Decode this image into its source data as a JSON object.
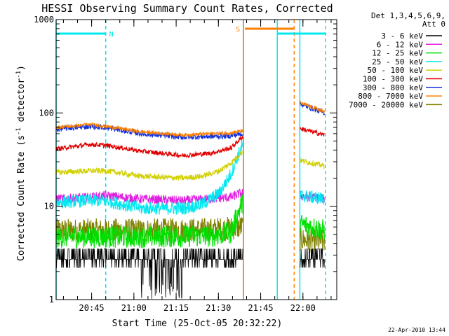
{
  "chart_data": {
    "type": "line",
    "title": "HESSI Observing Summary Count Rates, Corrected",
    "xlabel": "Start Time (25-Oct-05 20:32:22)",
    "ylabel_main": "Corrected Count Rate (s",
    "ylabel_sup1": "-1",
    "ylabel_mid": " detector",
    "ylabel_sup2": "-1",
    "ylabel_end": ")",
    "yscale": "log",
    "ylim": [
      1,
      1000
    ],
    "xlim_minutes": [
      0,
      99.6
    ],
    "y_ticks": [
      {
        "value": 1,
        "label": "1"
      },
      {
        "value": 10,
        "label": "10"
      },
      {
        "value": 100,
        "label": "100"
      },
      {
        "value": 1000,
        "label": "1000"
      }
    ],
    "x_ticks": [
      {
        "minute": 12.6,
        "label": "20:45"
      },
      {
        "minute": 27.6,
        "label": "21:00"
      },
      {
        "minute": 42.6,
        "label": "21:15"
      },
      {
        "minute": 57.6,
        "label": "21:30"
      },
      {
        "minute": 72.6,
        "label": "21:45"
      },
      {
        "minute": 87.6,
        "label": "22:00"
      }
    ],
    "legend_header": [
      "Det 1,3,4,5,6,9,",
      "Att 0"
    ],
    "legend_placement": "right",
    "series": [
      {
        "name": "3 - 6 keV",
        "color": "#000000"
      },
      {
        "name": "6 - 12 keV",
        "color": "#e020e0"
      },
      {
        "name": "12 - 25 keV",
        "color": "#00e000"
      },
      {
        "name": "25 - 50 keV",
        "color": "#00e8f0"
      },
      {
        "name": "50 - 100 keV",
        "color": "#d0d000"
      },
      {
        "name": "100 - 300 keV",
        "color": "#e00000"
      },
      {
        "name": "300 - 800 keV",
        "color": "#1030e0"
      },
      {
        "name": "800 - 7000 keV",
        "color": "#ff7f00"
      },
      {
        "name": "7000 - 20000 keV",
        "color": "#808000"
      }
    ],
    "flag_bars": [
      {
        "label": "N",
        "start": 0,
        "end": 17.6,
        "color": "#00e8f0"
      },
      {
        "label": "S",
        "start": 67,
        "end": 84.5,
        "color": "#ff7f00"
      },
      {
        "label": "",
        "start": 78.5,
        "end": 95.6,
        "color": "#00e8f0"
      }
    ],
    "markers": [
      {
        "minute": 0,
        "color": "#00e8f0",
        "style": "solid"
      },
      {
        "minute": 17.6,
        "color": "#00e8f0",
        "style": "dashed"
      },
      {
        "minute": 66.5,
        "color": "#c08020",
        "style": "solid"
      },
      {
        "minute": 78.5,
        "color": "#00e8f0",
        "style": "solid"
      },
      {
        "minute": 84.5,
        "color": "#ff7f00",
        "style": "dashed"
      },
      {
        "minute": 86.5,
        "color": "#00e8f0",
        "style": "solid"
      },
      {
        "minute": 95.6,
        "color": "#00e8f0",
        "style": "dashed"
      }
    ],
    "data_segments": [
      {
        "start": 0,
        "end": 66.3
      },
      {
        "start": 86.6,
        "end": 95.3
      }
    ],
    "series_profiles": [
      {
        "name": "3 - 6 keV",
        "x": [
          0,
          95.3
        ],
        "y": [
          2.7,
          2.7
        ]
      },
      {
        "name": "6 - 12 keV",
        "x": [
          0,
          12,
          17.6,
          30,
          45,
          55,
          62,
          66,
          86.6,
          95.3
        ],
        "y": [
          12,
          12.5,
          13,
          12,
          11.5,
          12,
          12.5,
          14,
          13,
          12
        ]
      },
      {
        "name": "12 - 25 keV",
        "x": [
          0,
          30,
          55,
          62,
          66,
          86.6,
          95.3
        ],
        "y": [
          4.7,
          4.7,
          4.8,
          5.2,
          11,
          6.5,
          5.5
        ]
      },
      {
        "name": "25 - 50 keV",
        "x": [
          0,
          12,
          17.6,
          30,
          45,
          52,
          58,
          62,
          66,
          86.6,
          95.3
        ],
        "y": [
          11,
          11.5,
          11.5,
          9.5,
          9.5,
          10.5,
          14,
          22,
          45,
          13,
          12
        ]
      },
      {
        "name": "50 - 100 keV",
        "x": [
          0,
          12,
          17.6,
          30,
          45,
          52,
          58,
          62,
          66,
          86.6,
          95.3
        ],
        "y": [
          23,
          24,
          24,
          21,
          20,
          21,
          24,
          29,
          38,
          31,
          27
        ]
      },
      {
        "name": "100 - 300 keV",
        "x": [
          0,
          12,
          17.6,
          30,
          45,
          55,
          62,
          66,
          86.6,
          95.3
        ],
        "y": [
          41,
          46,
          45,
          39,
          35,
          37,
          42,
          55,
          68,
          58
        ]
      },
      {
        "name": "300 - 800 keV",
        "x": [
          0,
          12,
          17.6,
          30,
          45,
          55,
          62,
          66,
          86.6,
          95.3
        ],
        "y": [
          67,
          72,
          70,
          60,
          55,
          56,
          57,
          60,
          125,
          100
        ]
      },
      {
        "name": "800 - 7000 keV",
        "x": [
          0,
          12,
          17.6,
          30,
          45,
          55,
          62,
          66,
          86.6,
          95.3
        ],
        "y": [
          70,
          75,
          72,
          63,
          58,
          60,
          61,
          64,
          128,
          103
        ]
      },
      {
        "name": "7000 - 20000 keV",
        "x": [
          0,
          30,
          55,
          62,
          66,
          86.6,
          95.3
        ],
        "y": [
          5.5,
          5.5,
          5.6,
          5.8,
          6,
          4.4,
          4.2
        ]
      }
    ]
  },
  "footer_date": "22-Apr-2010 13:44"
}
